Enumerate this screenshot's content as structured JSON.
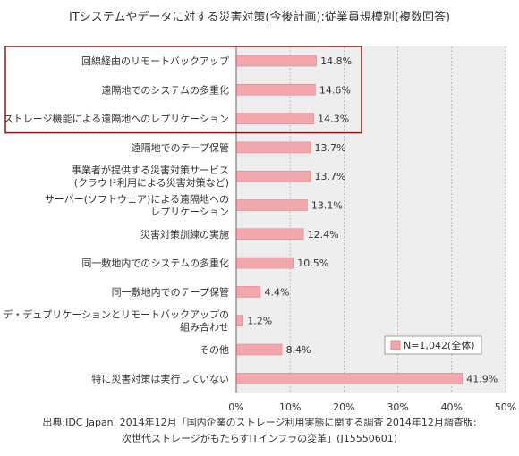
{
  "chart_data": {
    "type": "bar",
    "orientation": "horizontal",
    "title": "ITシステムやデータに対する災害対策(今後計画):従業員規模別(複数回答)",
    "categories": [
      [
        "回線経由のリモートバックアップ"
      ],
      [
        "遠隔地でのシステムの多重化"
      ],
      [
        "ストレージ機能による遠隔地へのレプリケーション"
      ],
      [
        "遠隔地でのテープ保管"
      ],
      [
        "事業者が提供する災害対策サービス",
        "(クラウド利用による災害対策など)"
      ],
      [
        "サーバー(ソフトウェア)による遠隔地への",
        "レプリケーション"
      ],
      [
        "災害対策訓練の実施"
      ],
      [
        "同一敷地内でのシステムの多重化"
      ],
      [
        "同一敷地内でのテープ保管"
      ],
      [
        "デ・デュプリケーションとリモートバックアップの",
        "組み合わせ"
      ],
      [
        "その他"
      ],
      [
        "特に災害対策は実行していない"
      ]
    ],
    "series": [
      {
        "name": "N=1,042(全体)",
        "values": [
          14.8,
          14.6,
          14.3,
          13.7,
          13.7,
          13.1,
          12.4,
          10.5,
          4.4,
          1.2,
          8.4,
          41.9
        ]
      }
    ],
    "value_labels": [
      "14.8%",
      "14.6%",
      "14.3%",
      "13.7%",
      "13.7%",
      "13.1%",
      "12.4%",
      "10.5%",
      "4.4%",
      "1.2%",
      "8.4%",
      "41.9%"
    ],
    "xlim": [
      0,
      50
    ],
    "xticks": [
      0,
      10,
      20,
      30,
      40,
      50
    ],
    "xtick_labels": [
      "0%",
      "10%",
      "20%",
      "30%",
      "40%",
      "50%"
    ],
    "grid": true,
    "legend_position": "bottom-right",
    "highlighted_categories": [
      0,
      1,
      2
    ],
    "colors": {
      "bar": "#f4a6ad",
      "bar_stroke": "#d98991",
      "plot_bg": "#eeeeee",
      "highlight_box": "#8b1a1a"
    }
  },
  "source": {
    "line1": "出典:IDC Japan, 2014年12月「国内企業のストレージ利用実態に関する調査 2014年12月調査版:",
    "line2": "次世代ストレージがもたらすITインフラの変革」(J15550601)"
  }
}
